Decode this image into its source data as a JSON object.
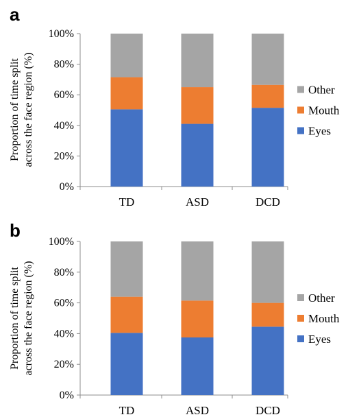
{
  "chart_data": [
    {
      "panel": "a",
      "type": "bar",
      "stacked": true,
      "categories": [
        "TD",
        "ASD",
        "DCD"
      ],
      "series": [
        {
          "name": "Eyes",
          "values": [
            50.5,
            41,
            51.5
          ],
          "color": "#4472c4"
        },
        {
          "name": "Mouth",
          "values": [
            21,
            24,
            15
          ],
          "color": "#ed7d31"
        },
        {
          "name": "Other",
          "values": [
            28.5,
            35,
            33.5
          ],
          "color": "#a5a5a5"
        }
      ],
      "ylabel_lines": [
        "Proportion of time split",
        "across  the face region (%)"
      ],
      "yticks": [
        "0%",
        "20%",
        "40%",
        "60%",
        "80%",
        "100%"
      ],
      "ylim": [
        0,
        100
      ],
      "grid": false,
      "legend_position": "right"
    },
    {
      "panel": "b",
      "type": "bar",
      "stacked": true,
      "categories": [
        "TD",
        "ASD",
        "DCD"
      ],
      "series": [
        {
          "name": "Eyes",
          "values": [
            40.5,
            37.5,
            44.5
          ],
          "color": "#4472c4"
        },
        {
          "name": "Mouth",
          "values": [
            23.5,
            24,
            15.5
          ],
          "color": "#ed7d31"
        },
        {
          "name": "Other",
          "values": [
            36,
            38.5,
            40
          ],
          "color": "#a5a5a5"
        }
      ],
      "ylabel_lines": [
        "Proportion of time split",
        "across  the face region (%)"
      ],
      "yticks": [
        "0%",
        "20%",
        "40%",
        "60%",
        "80%",
        "100%"
      ],
      "ylim": [
        0,
        100
      ],
      "grid": false,
      "legend_position": "right"
    }
  ]
}
